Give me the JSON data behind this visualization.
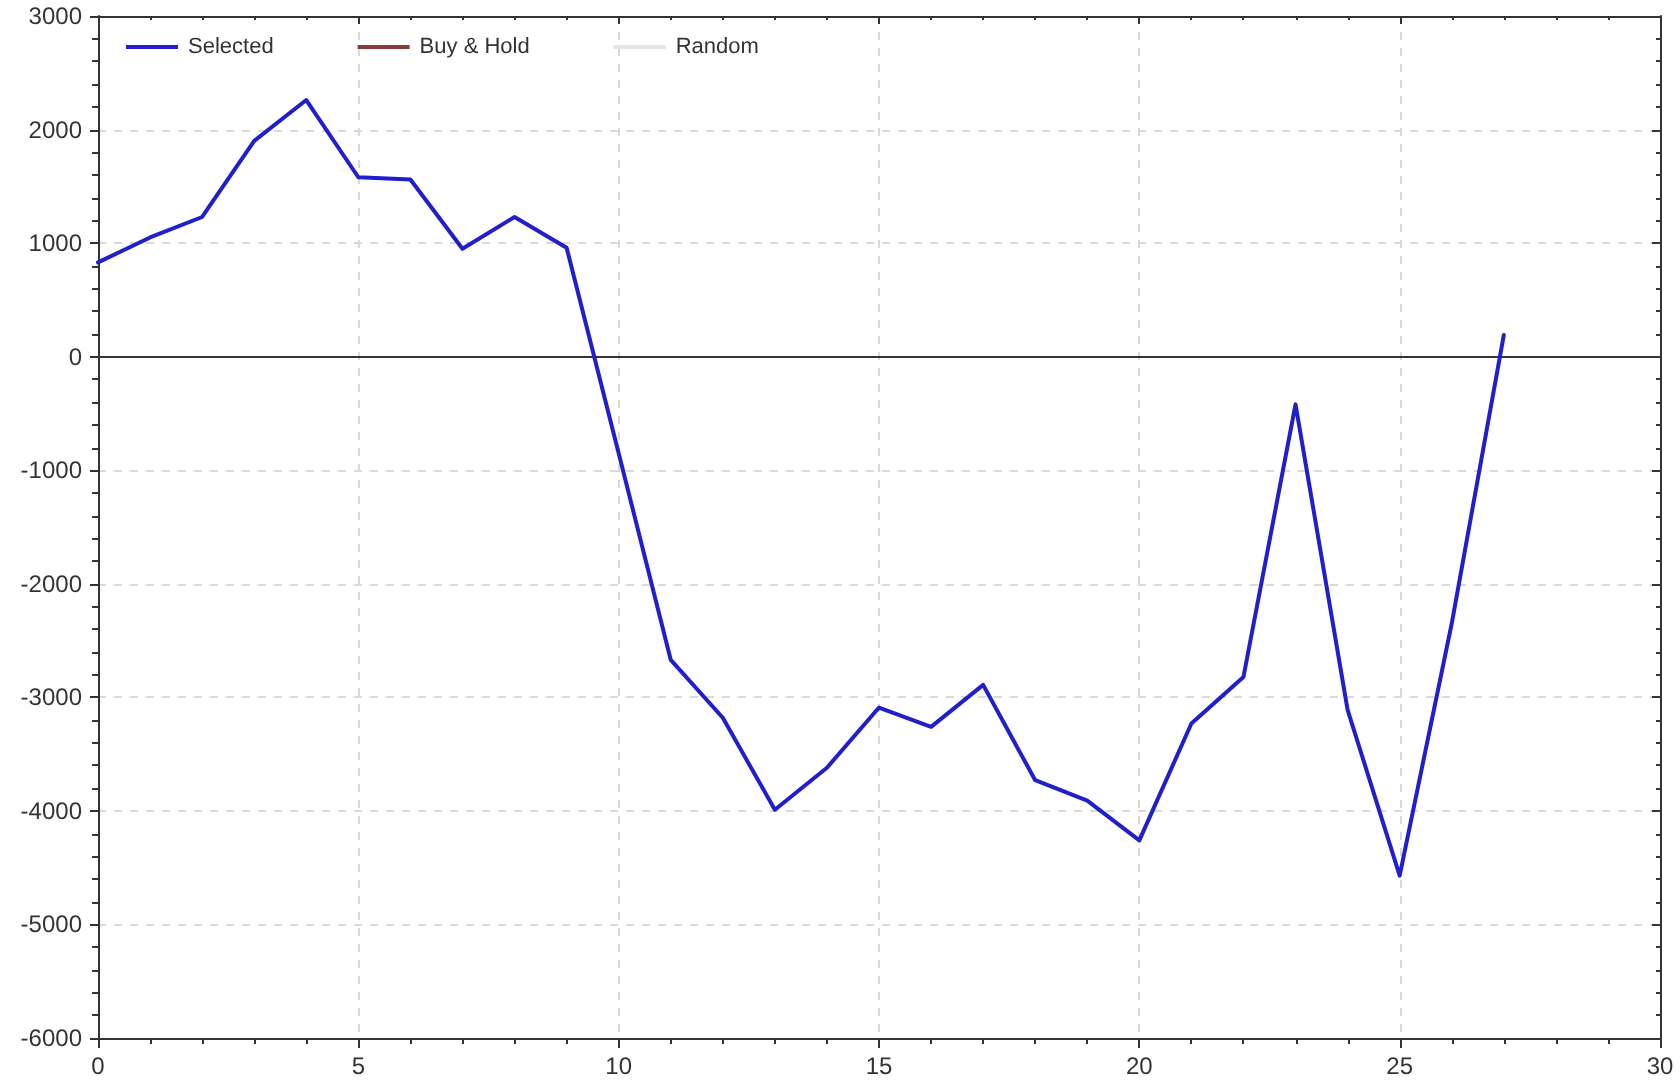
{
  "chart_data": {
    "type": "line",
    "x": [
      0,
      1,
      2,
      3,
      4,
      5,
      6,
      7,
      8,
      9,
      10,
      11,
      12,
      13,
      14,
      15,
      16,
      17,
      18,
      19,
      20,
      21,
      22,
      23,
      24,
      25,
      26,
      27
    ],
    "series": [
      {
        "name": "Selected",
        "color": "#1f1fcc",
        "values": [
          830,
          1050,
          1230,
          1900,
          2260,
          1580,
          1560,
          950,
          1230,
          960,
          -850,
          -2670,
          -3180,
          -3990,
          -3620,
          -3090,
          -3260,
          -2890,
          -3730,
          -3910,
          -4260,
          -3230,
          -2820,
          -420,
          -3110,
          -4570,
          -2350,
          190
        ]
      },
      {
        "name": "Buy & Hold",
        "color": "#8b3a3a",
        "values": [
          null,
          null,
          null,
          null,
          null,
          null,
          null,
          null,
          null,
          null,
          null,
          null,
          null,
          null,
          null,
          null,
          null,
          null,
          null,
          null,
          null,
          null,
          null,
          null,
          null,
          null,
          null,
          null
        ]
      },
      {
        "name": "Random",
        "color": "#e4e4e4",
        "values": [
          null,
          null,
          null,
          null,
          null,
          null,
          null,
          null,
          null,
          null,
          null,
          null,
          null,
          null,
          null,
          null,
          null,
          null,
          null,
          null,
          null,
          null,
          null,
          null,
          null,
          null,
          null,
          null
        ]
      }
    ],
    "xlim": [
      0,
      30
    ],
    "xticks": [
      0,
      5,
      10,
      15,
      20,
      25,
      30
    ],
    "ylim": [
      -6000,
      3000
    ],
    "yticks": [
      -6000,
      -5000,
      -4000,
      -3000,
      -2000,
      -1000,
      0,
      1000,
      2000,
      3000
    ],
    "grid": true,
    "legend": "top left",
    "marker": "none",
    "line_style": "solid",
    "ref_lines": [
      {
        "axis": "y",
        "value": 0,
        "color": "#333333"
      }
    ]
  }
}
